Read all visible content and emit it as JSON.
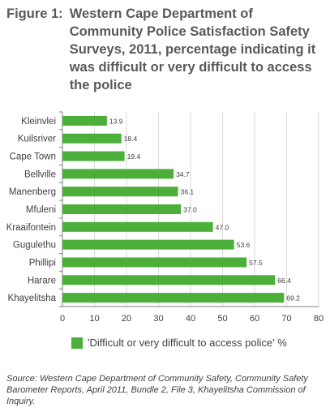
{
  "figure": {
    "label": "Figure 1:",
    "title": "Western Cape Department of Community Police Satisfaction Safety Surveys, 2011, percentage indicating it was difficult or very difficult to access the police"
  },
  "chart_data": {
    "type": "bar",
    "orientation": "horizontal",
    "categories": [
      "Kleinvlei",
      "Kuilsriver",
      "Cape Town",
      "Bellville",
      "Manenberg",
      "Mfuleni",
      "Kraaifontein",
      "Gugulethu",
      "Phillipi",
      "Harare",
      "Khayelitsha"
    ],
    "values": [
      13.9,
      18.4,
      19.4,
      34.7,
      36.1,
      37.0,
      47.0,
      53.6,
      57.5,
      66.4,
      69.2
    ],
    "value_labels": [
      "13.9",
      "18.4",
      "19.4",
      "34.7",
      "36.1",
      "37.0",
      "47.0",
      "53.6",
      "57.5",
      "66.4",
      "69.2"
    ],
    "series": [
      {
        "name": "'Difficult or very difficult to access police' %",
        "values": [
          13.9,
          18.4,
          19.4,
          34.7,
          36.1,
          37.0,
          47.0,
          53.6,
          57.5,
          66.4,
          69.2
        ]
      }
    ],
    "xlim": [
      0,
      80
    ],
    "xticks": [
      0,
      10,
      20,
      30,
      40,
      50,
      60,
      70,
      80
    ],
    "grid": true,
    "legend_position": "bottom",
    "bar_color": "#4caf3a",
    "grid_color": "#d9d9d9"
  },
  "legend": {
    "label": "'Difficult or very difficult to access police' %"
  },
  "source": {
    "text": "Source: Western Cape Department of Community Safety, Community Safety Barometer Reports, April 2011, Bundle 2, File 3, Khayelitsha Commission of Inquiry."
  }
}
